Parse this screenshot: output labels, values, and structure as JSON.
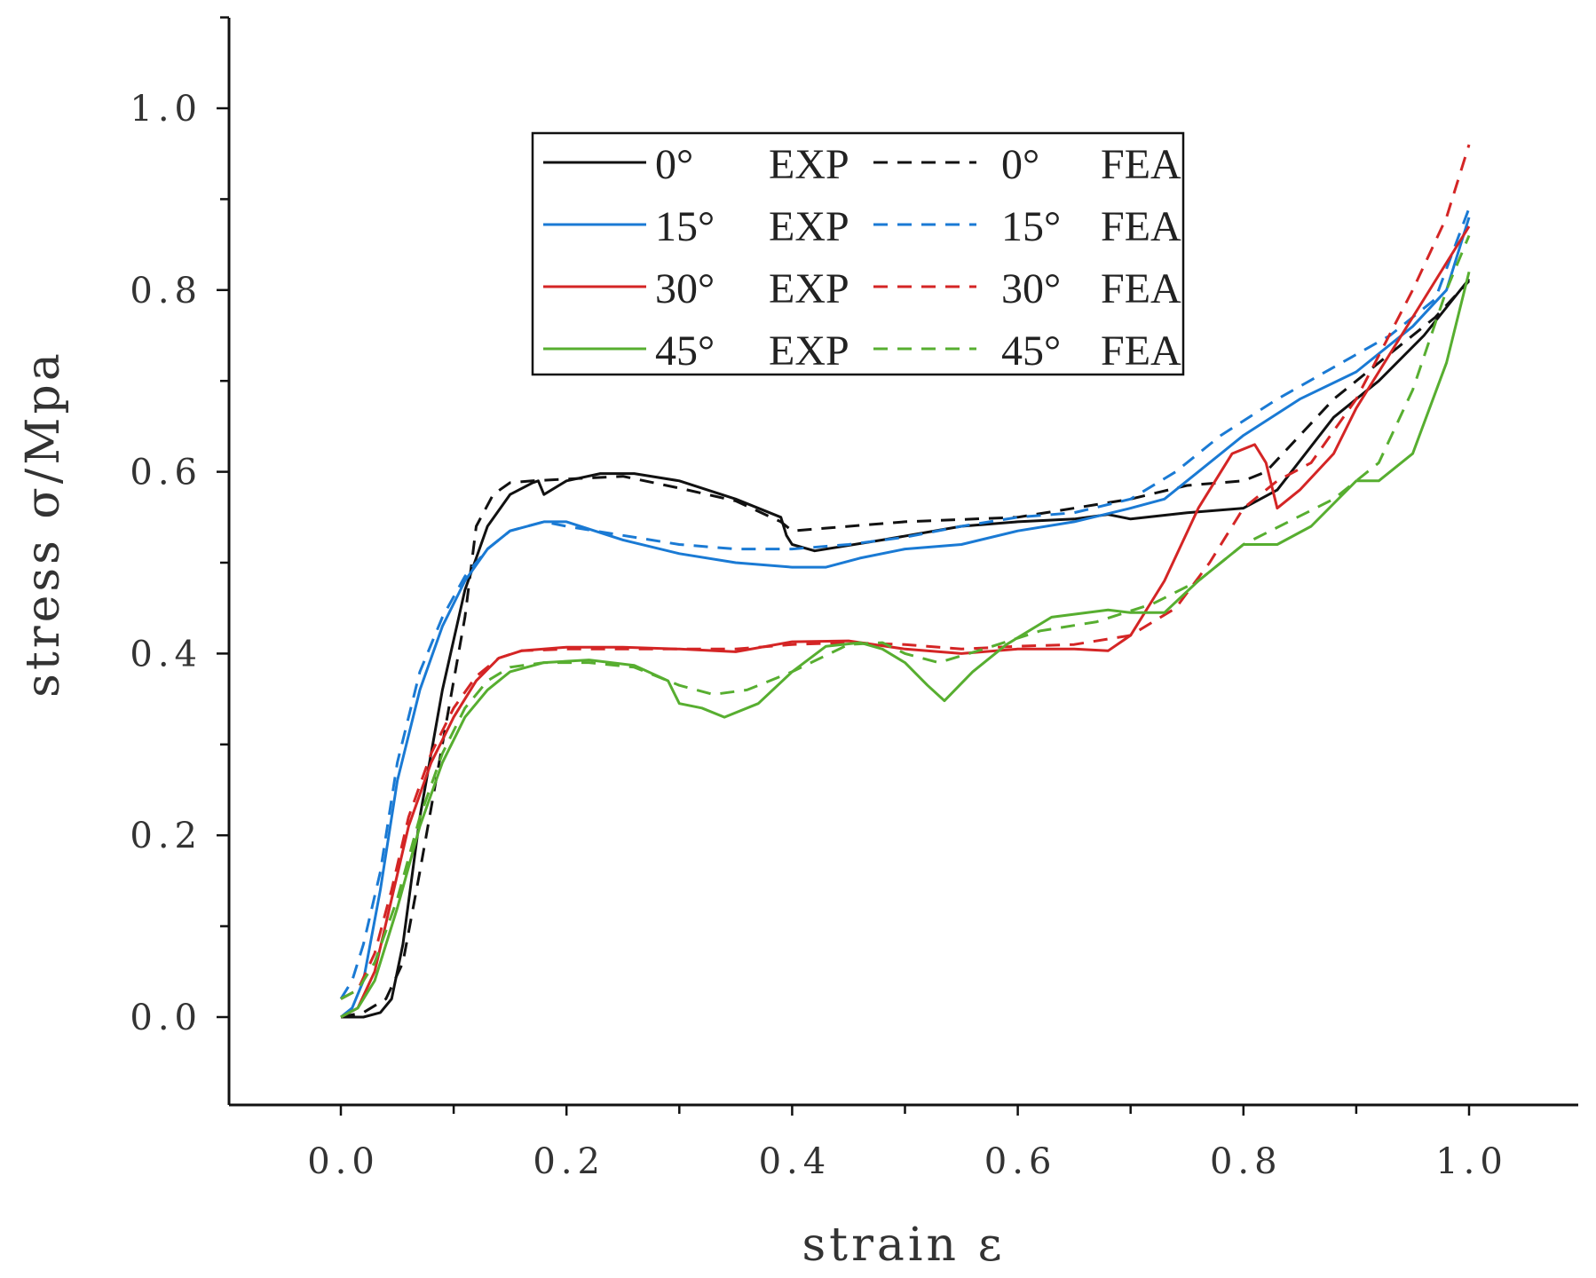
{
  "chart_data": {
    "type": "line",
    "title": "",
    "xlabel": "strain ε",
    "ylabel": "stress σ/Mpa",
    "xlim": [
      -0.1,
      1.1
    ],
    "ylim": [
      -0.1,
      1.1
    ],
    "x_ticks": [
      0.0,
      0.2,
      0.4,
      0.6,
      0.8,
      1.0
    ],
    "y_ticks": [
      0.0,
      0.2,
      0.4,
      0.6,
      0.8,
      1.0
    ],
    "x_tick_labels": [
      "0.0",
      "0.2",
      "0.4",
      "0.6",
      "0.8",
      "1.0"
    ],
    "y_tick_labels": [
      "0.0",
      "0.2",
      "0.4",
      "0.6",
      "0.8",
      "1.0"
    ],
    "grid": false,
    "legend_position": "top-center",
    "series": [
      {
        "name": "0° EXP",
        "angle": "0°",
        "kind": "EXP",
        "color": "#111111",
        "dash": "solid",
        "points": [
          [
            0,
            0
          ],
          [
            0.02,
            0.0
          ],
          [
            0.035,
            0.005
          ],
          [
            0.045,
            0.02
          ],
          [
            0.055,
            0.08
          ],
          [
            0.07,
            0.22
          ],
          [
            0.09,
            0.36
          ],
          [
            0.11,
            0.47
          ],
          [
            0.13,
            0.54
          ],
          [
            0.15,
            0.575
          ],
          [
            0.17,
            0.588
          ],
          [
            0.175,
            0.59
          ],
          [
            0.18,
            0.575
          ],
          [
            0.2,
            0.59
          ],
          [
            0.23,
            0.598
          ],
          [
            0.26,
            0.598
          ],
          [
            0.3,
            0.59
          ],
          [
            0.35,
            0.57
          ],
          [
            0.39,
            0.55
          ],
          [
            0.395,
            0.53
          ],
          [
            0.4,
            0.52
          ],
          [
            0.42,
            0.513
          ],
          [
            0.48,
            0.525
          ],
          [
            0.55,
            0.54
          ],
          [
            0.6,
            0.545
          ],
          [
            0.65,
            0.548
          ],
          [
            0.68,
            0.553
          ],
          [
            0.7,
            0.548
          ],
          [
            0.75,
            0.555
          ],
          [
            0.8,
            0.56
          ],
          [
            0.83,
            0.58
          ],
          [
            0.88,
            0.66
          ],
          [
            0.92,
            0.7
          ],
          [
            0.96,
            0.75
          ],
          [
            1.0,
            0.812
          ]
        ]
      },
      {
        "name": "0° FEA",
        "angle": "0°",
        "kind": "FEA",
        "color": "#111111",
        "dash": "dashed",
        "points": [
          [
            0,
            0
          ],
          [
            0.02,
            0.005
          ],
          [
            0.04,
            0.02
          ],
          [
            0.055,
            0.06
          ],
          [
            0.07,
            0.16
          ],
          [
            0.09,
            0.3
          ],
          [
            0.11,
            0.44
          ],
          [
            0.12,
            0.54
          ],
          [
            0.135,
            0.575
          ],
          [
            0.15,
            0.588
          ],
          [
            0.17,
            0.59
          ],
          [
            0.2,
            0.592
          ],
          [
            0.25,
            0.595
          ],
          [
            0.3,
            0.582
          ],
          [
            0.35,
            0.568
          ],
          [
            0.39,
            0.545
          ],
          [
            0.4,
            0.535
          ],
          [
            0.5,
            0.545
          ],
          [
            0.6,
            0.55
          ],
          [
            0.7,
            0.57
          ],
          [
            0.75,
            0.585
          ],
          [
            0.8,
            0.59
          ],
          [
            0.82,
            0.6
          ],
          [
            0.88,
            0.68
          ],
          [
            0.93,
            0.73
          ],
          [
            0.97,
            0.77
          ],
          [
            1.0,
            0.81
          ]
        ]
      },
      {
        "name": "15° EXP",
        "angle": "15°",
        "kind": "EXP",
        "color": "#1a7ad4",
        "dash": "solid",
        "points": [
          [
            0,
            0
          ],
          [
            0.01,
            0.01
          ],
          [
            0.02,
            0.04
          ],
          [
            0.035,
            0.14
          ],
          [
            0.05,
            0.26
          ],
          [
            0.07,
            0.36
          ],
          [
            0.09,
            0.43
          ],
          [
            0.11,
            0.48
          ],
          [
            0.13,
            0.515
          ],
          [
            0.15,
            0.535
          ],
          [
            0.18,
            0.545
          ],
          [
            0.2,
            0.545
          ],
          [
            0.25,
            0.525
          ],
          [
            0.3,
            0.51
          ],
          [
            0.35,
            0.5
          ],
          [
            0.4,
            0.495
          ],
          [
            0.43,
            0.495
          ],
          [
            0.46,
            0.505
          ],
          [
            0.5,
            0.515
          ],
          [
            0.55,
            0.52
          ],
          [
            0.6,
            0.535
          ],
          [
            0.65,
            0.545
          ],
          [
            0.7,
            0.56
          ],
          [
            0.73,
            0.57
          ],
          [
            0.76,
            0.6
          ],
          [
            0.8,
            0.64
          ],
          [
            0.85,
            0.68
          ],
          [
            0.9,
            0.71
          ],
          [
            0.95,
            0.76
          ],
          [
            0.98,
            0.8
          ],
          [
            1.0,
            0.88
          ]
        ]
      },
      {
        "name": "15° FEA",
        "angle": "15°",
        "kind": "FEA",
        "color": "#1a7ad4",
        "dash": "dashed",
        "points": [
          [
            0,
            0.02
          ],
          [
            0.01,
            0.04
          ],
          [
            0.02,
            0.08
          ],
          [
            0.035,
            0.16
          ],
          [
            0.05,
            0.28
          ],
          [
            0.07,
            0.38
          ],
          [
            0.09,
            0.44
          ],
          [
            0.11,
            0.485
          ],
          [
            0.13,
            0.515
          ],
          [
            0.15,
            0.535
          ],
          [
            0.18,
            0.545
          ],
          [
            0.2,
            0.54
          ],
          [
            0.25,
            0.53
          ],
          [
            0.3,
            0.52
          ],
          [
            0.35,
            0.515
          ],
          [
            0.4,
            0.515
          ],
          [
            0.45,
            0.52
          ],
          [
            0.5,
            0.528
          ],
          [
            0.55,
            0.54
          ],
          [
            0.6,
            0.55
          ],
          [
            0.65,
            0.555
          ],
          [
            0.7,
            0.57
          ],
          [
            0.74,
            0.6
          ],
          [
            0.78,
            0.64
          ],
          [
            0.83,
            0.68
          ],
          [
            0.88,
            0.715
          ],
          [
            0.93,
            0.75
          ],
          [
            0.97,
            0.79
          ],
          [
            1.0,
            0.89
          ]
        ]
      },
      {
        "name": "30° EXP",
        "angle": "30°",
        "kind": "EXP",
        "color": "#d42525",
        "dash": "solid",
        "points": [
          [
            0,
            0
          ],
          [
            0.015,
            0.01
          ],
          [
            0.03,
            0.05
          ],
          [
            0.045,
            0.13
          ],
          [
            0.06,
            0.21
          ],
          [
            0.08,
            0.28
          ],
          [
            0.1,
            0.33
          ],
          [
            0.12,
            0.37
          ],
          [
            0.14,
            0.395
          ],
          [
            0.16,
            0.403
          ],
          [
            0.2,
            0.407
          ],
          [
            0.25,
            0.407
          ],
          [
            0.3,
            0.405
          ],
          [
            0.35,
            0.402
          ],
          [
            0.4,
            0.413
          ],
          [
            0.45,
            0.414
          ],
          [
            0.5,
            0.405
          ],
          [
            0.55,
            0.4
          ],
          [
            0.6,
            0.405
          ],
          [
            0.65,
            0.405
          ],
          [
            0.68,
            0.403
          ],
          [
            0.7,
            0.42
          ],
          [
            0.73,
            0.48
          ],
          [
            0.76,
            0.56
          ],
          [
            0.79,
            0.62
          ],
          [
            0.81,
            0.63
          ],
          [
            0.82,
            0.61
          ],
          [
            0.83,
            0.56
          ],
          [
            0.85,
            0.58
          ],
          [
            0.88,
            0.62
          ],
          [
            0.9,
            0.67
          ],
          [
            0.93,
            0.73
          ],
          [
            0.96,
            0.79
          ],
          [
            1.0,
            0.87
          ]
        ]
      },
      {
        "name": "30° FEA",
        "angle": "30°",
        "kind": "FEA",
        "color": "#d42525",
        "dash": "dashed",
        "points": [
          [
            0,
            0.02
          ],
          [
            0.015,
            0.03
          ],
          [
            0.03,
            0.07
          ],
          [
            0.045,
            0.14
          ],
          [
            0.06,
            0.22
          ],
          [
            0.08,
            0.29
          ],
          [
            0.1,
            0.34
          ],
          [
            0.12,
            0.375
          ],
          [
            0.14,
            0.395
          ],
          [
            0.16,
            0.403
          ],
          [
            0.2,
            0.405
          ],
          [
            0.25,
            0.405
          ],
          [
            0.3,
            0.405
          ],
          [
            0.35,
            0.405
          ],
          [
            0.4,
            0.41
          ],
          [
            0.45,
            0.412
          ],
          [
            0.5,
            0.41
          ],
          [
            0.55,
            0.405
          ],
          [
            0.6,
            0.408
          ],
          [
            0.65,
            0.41
          ],
          [
            0.7,
            0.42
          ],
          [
            0.74,
            0.45
          ],
          [
            0.77,
            0.5
          ],
          [
            0.8,
            0.56
          ],
          [
            0.83,
            0.59
          ],
          [
            0.86,
            0.61
          ],
          [
            0.9,
            0.68
          ],
          [
            0.95,
            0.8
          ],
          [
            0.98,
            0.88
          ],
          [
            1.0,
            0.96
          ]
        ]
      },
      {
        "name": "45° EXP",
        "angle": "45°",
        "kind": "EXP",
        "color": "#57ae30",
        "dash": "solid",
        "points": [
          [
            0,
            0
          ],
          [
            0.015,
            0.01
          ],
          [
            0.03,
            0.04
          ],
          [
            0.05,
            0.12
          ],
          [
            0.07,
            0.21
          ],
          [
            0.09,
            0.28
          ],
          [
            0.11,
            0.33
          ],
          [
            0.13,
            0.36
          ],
          [
            0.15,
            0.38
          ],
          [
            0.18,
            0.39
          ],
          [
            0.22,
            0.393
          ],
          [
            0.26,
            0.387
          ],
          [
            0.29,
            0.37
          ],
          [
            0.3,
            0.345
          ],
          [
            0.32,
            0.34
          ],
          [
            0.34,
            0.33
          ],
          [
            0.37,
            0.345
          ],
          [
            0.4,
            0.38
          ],
          [
            0.43,
            0.408
          ],
          [
            0.46,
            0.412
          ],
          [
            0.48,
            0.405
          ],
          [
            0.5,
            0.39
          ],
          [
            0.52,
            0.365
          ],
          [
            0.535,
            0.348
          ],
          [
            0.56,
            0.38
          ],
          [
            0.59,
            0.41
          ],
          [
            0.63,
            0.44
          ],
          [
            0.68,
            0.448
          ],
          [
            0.7,
            0.445
          ],
          [
            0.73,
            0.445
          ],
          [
            0.76,
            0.48
          ],
          [
            0.8,
            0.52
          ],
          [
            0.83,
            0.52
          ],
          [
            0.86,
            0.54
          ],
          [
            0.9,
            0.59
          ],
          [
            0.92,
            0.59
          ],
          [
            0.95,
            0.62
          ],
          [
            0.98,
            0.72
          ],
          [
            1.0,
            0.82
          ]
        ]
      },
      {
        "name": "45° FEA",
        "angle": "45°",
        "kind": "FEA",
        "color": "#57ae30",
        "dash": "dashed",
        "points": [
          [
            0,
            0.02
          ],
          [
            0.015,
            0.03
          ],
          [
            0.03,
            0.06
          ],
          [
            0.05,
            0.13
          ],
          [
            0.07,
            0.22
          ],
          [
            0.09,
            0.29
          ],
          [
            0.11,
            0.34
          ],
          [
            0.13,
            0.37
          ],
          [
            0.15,
            0.385
          ],
          [
            0.18,
            0.39
          ],
          [
            0.22,
            0.39
          ],
          [
            0.26,
            0.385
          ],
          [
            0.3,
            0.365
          ],
          [
            0.33,
            0.355
          ],
          [
            0.36,
            0.36
          ],
          [
            0.4,
            0.38
          ],
          [
            0.45,
            0.41
          ],
          [
            0.48,
            0.412
          ],
          [
            0.5,
            0.4
          ],
          [
            0.53,
            0.39
          ],
          [
            0.57,
            0.405
          ],
          [
            0.62,
            0.425
          ],
          [
            0.67,
            0.435
          ],
          [
            0.72,
            0.455
          ],
          [
            0.76,
            0.48
          ],
          [
            0.8,
            0.52
          ],
          [
            0.84,
            0.545
          ],
          [
            0.88,
            0.57
          ],
          [
            0.92,
            0.61
          ],
          [
            0.95,
            0.69
          ],
          [
            0.98,
            0.8
          ],
          [
            1.0,
            0.86
          ]
        ]
      }
    ]
  }
}
